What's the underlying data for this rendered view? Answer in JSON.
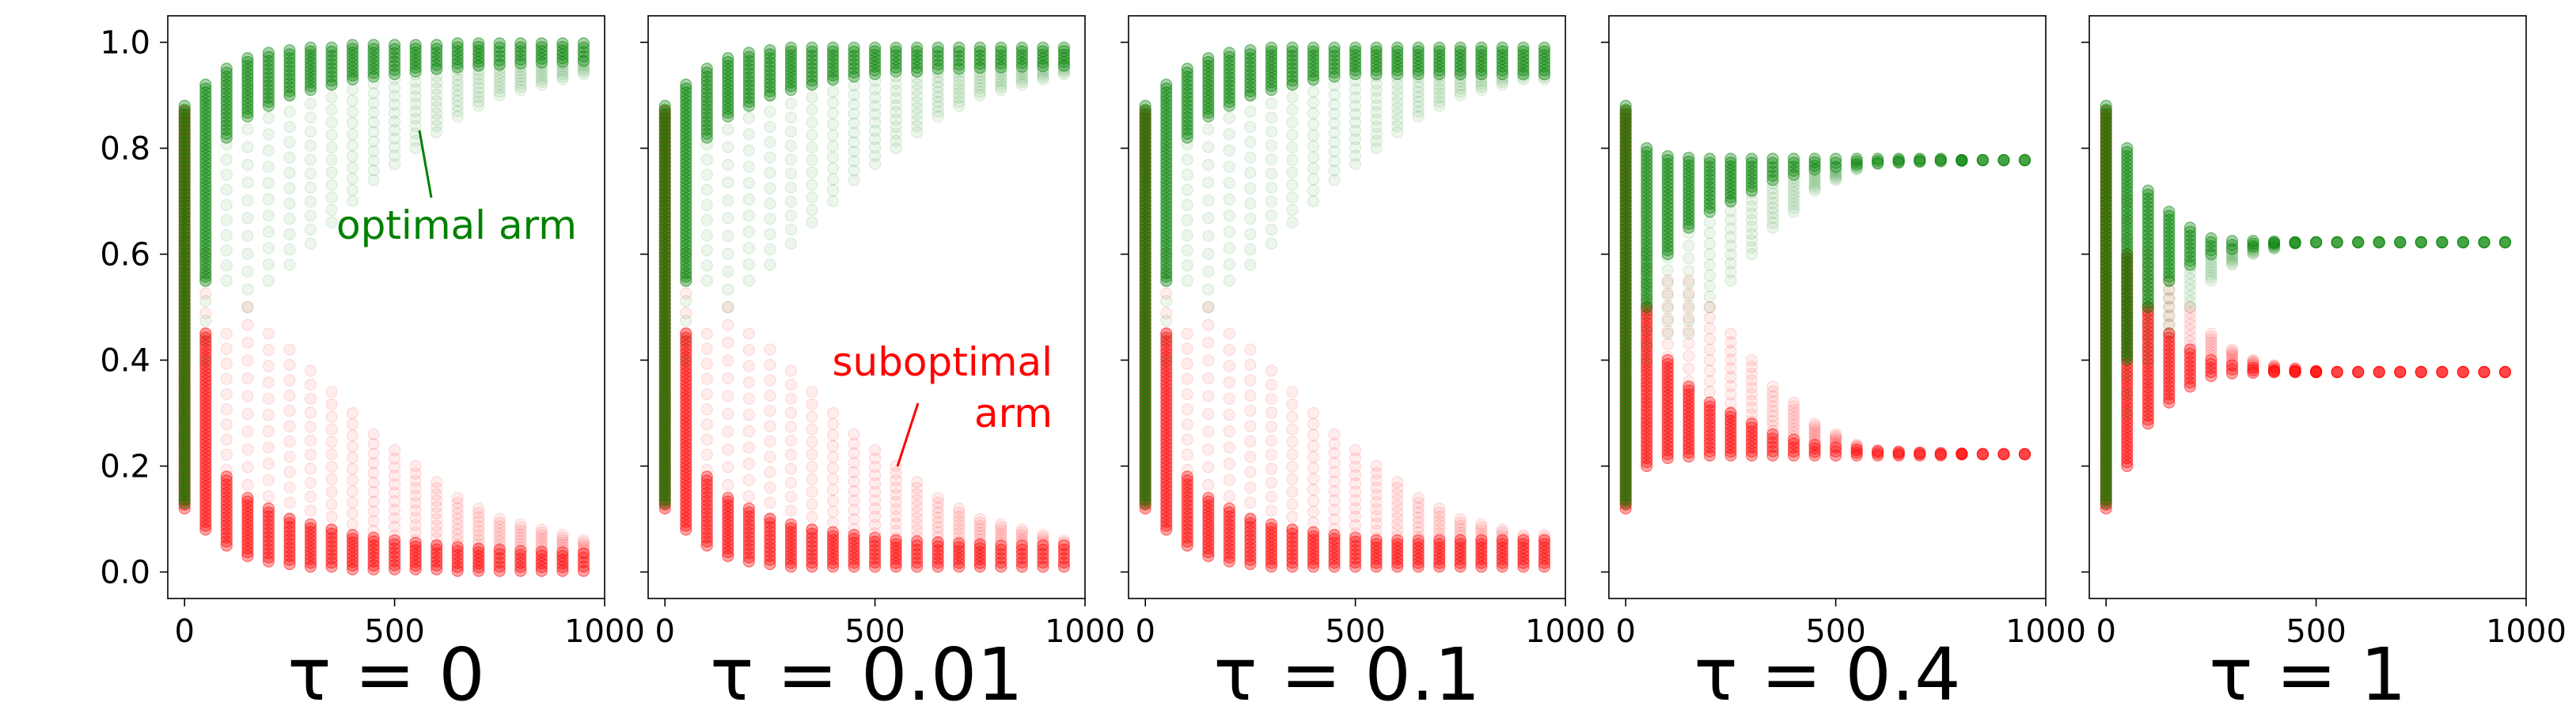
{
  "figure": {
    "y_tick_labels": [
      "0.0",
      "0.2",
      "0.4",
      "0.6",
      "0.8",
      "1.0"
    ],
    "x_tick_labels": [
      "0",
      "500",
      "1000"
    ]
  },
  "annotations": {
    "optimal": "optimal arm",
    "suboptimal_line1": "suboptimal",
    "suboptimal_line2": "arm"
  },
  "colors": {
    "optimal": "#008000",
    "suboptimal": "#ff0000",
    "axis": "#000000"
  },
  "chart_data": [
    {
      "type": "scatter",
      "title": "τ = 0",
      "xlim": [
        -40,
        1000
      ],
      "ylim": [
        -0.05,
        1.05
      ],
      "x_ticks": [
        0,
        500,
        1000
      ],
      "y_ticks": [
        0.0,
        0.2,
        0.4,
        0.6,
        0.8,
        1.0
      ],
      "grid": false,
      "series": [
        {
          "name": "optimal arm",
          "color": "#008000",
          "x": [
            0,
            50,
            100,
            150,
            200,
            250,
            300,
            350,
            400,
            450,
            500,
            550,
            600,
            650,
            700,
            750,
            800,
            850,
            900,
            950
          ],
          "y_low": [
            0.13,
            0.55,
            0.82,
            0.86,
            0.88,
            0.9,
            0.91,
            0.92,
            0.93,
            0.935,
            0.94,
            0.945,
            0.95,
            0.953,
            0.956,
            0.958,
            0.96,
            0.962,
            0.963,
            0.965
          ],
          "y_high": [
            0.88,
            0.92,
            0.95,
            0.97,
            0.98,
            0.985,
            0.99,
            0.99,
            0.995,
            0.995,
            0.995,
            0.995,
            0.995,
            0.998,
            0.998,
            0.998,
            0.998,
            0.998,
            0.998,
            0.998
          ],
          "y_faint_low": [
            0.13,
            0.4,
            0.55,
            0.5,
            0.55,
            0.58,
            0.62,
            0.66,
            0.7,
            0.74,
            0.77,
            0.8,
            0.83,
            0.86,
            0.88,
            0.9,
            0.91,
            0.92,
            0.93,
            0.94
          ]
        },
        {
          "name": "suboptimal arm",
          "color": "#ff0000",
          "x": [
            0,
            50,
            100,
            150,
            200,
            250,
            300,
            350,
            400,
            450,
            500,
            550,
            600,
            650,
            700,
            750,
            800,
            850,
            900,
            950
          ],
          "y_low": [
            0.12,
            0.08,
            0.05,
            0.03,
            0.02,
            0.015,
            0.01,
            0.01,
            0.005,
            0.005,
            0.005,
            0.005,
            0.005,
            0.002,
            0.002,
            0.002,
            0.002,
            0.002,
            0.002,
            0.002
          ],
          "y_high": [
            0.87,
            0.45,
            0.18,
            0.14,
            0.12,
            0.1,
            0.09,
            0.08,
            0.07,
            0.065,
            0.06,
            0.055,
            0.05,
            0.047,
            0.044,
            0.042,
            0.04,
            0.038,
            0.037,
            0.035
          ],
          "y_faint_high": [
            0.87,
            0.6,
            0.45,
            0.5,
            0.45,
            0.42,
            0.38,
            0.34,
            0.3,
            0.26,
            0.23,
            0.2,
            0.17,
            0.14,
            0.12,
            0.1,
            0.09,
            0.08,
            0.07,
            0.06
          ]
        }
      ]
    },
    {
      "type": "scatter",
      "title": "τ = 0.01",
      "xlim": [
        -40,
        1000
      ],
      "ylim": [
        -0.05,
        1.05
      ],
      "x_ticks": [
        0,
        500,
        1000
      ],
      "y_ticks": [
        0.0,
        0.2,
        0.4,
        0.6,
        0.8,
        1.0
      ],
      "grid": false,
      "series": [
        {
          "name": "optimal arm",
          "color": "#008000",
          "x": [
            0,
            50,
            100,
            150,
            200,
            250,
            300,
            350,
            400,
            450,
            500,
            550,
            600,
            650,
            700,
            750,
            800,
            850,
            900,
            950
          ],
          "y_low": [
            0.13,
            0.55,
            0.82,
            0.86,
            0.88,
            0.9,
            0.91,
            0.92,
            0.93,
            0.935,
            0.94,
            0.945,
            0.945,
            0.95,
            0.95,
            0.952,
            0.953,
            0.954,
            0.955,
            0.956
          ],
          "y_high": [
            0.88,
            0.92,
            0.95,
            0.97,
            0.98,
            0.985,
            0.99,
            0.99,
            0.99,
            0.99,
            0.99,
            0.99,
            0.99,
            0.99,
            0.99,
            0.99,
            0.99,
            0.99,
            0.99,
            0.99
          ],
          "y_faint_low": [
            0.13,
            0.4,
            0.55,
            0.5,
            0.55,
            0.58,
            0.62,
            0.66,
            0.7,
            0.74,
            0.77,
            0.8,
            0.83,
            0.86,
            0.88,
            0.9,
            0.91,
            0.92,
            0.93,
            0.94
          ]
        },
        {
          "name": "suboptimal arm",
          "color": "#ff0000",
          "x": [
            0,
            50,
            100,
            150,
            200,
            250,
            300,
            350,
            400,
            450,
            500,
            550,
            600,
            650,
            700,
            750,
            800,
            850,
            900,
            950
          ],
          "y_low": [
            0.12,
            0.08,
            0.05,
            0.03,
            0.02,
            0.015,
            0.01,
            0.01,
            0.01,
            0.01,
            0.01,
            0.01,
            0.01,
            0.01,
            0.01,
            0.01,
            0.01,
            0.01,
            0.01,
            0.01
          ],
          "y_high": [
            0.87,
            0.45,
            0.18,
            0.14,
            0.12,
            0.1,
            0.09,
            0.08,
            0.075,
            0.07,
            0.065,
            0.06,
            0.058,
            0.056,
            0.054,
            0.052,
            0.05,
            0.05,
            0.05,
            0.05
          ],
          "y_faint_high": [
            0.87,
            0.6,
            0.45,
            0.5,
            0.45,
            0.42,
            0.38,
            0.34,
            0.3,
            0.26,
            0.23,
            0.2,
            0.17,
            0.14,
            0.12,
            0.1,
            0.09,
            0.08,
            0.07,
            0.06
          ]
        }
      ]
    },
    {
      "type": "scatter",
      "title": "τ = 0.1",
      "xlim": [
        -40,
        1000
      ],
      "ylim": [
        -0.05,
        1.05
      ],
      "x_ticks": [
        0,
        500,
        1000
      ],
      "y_ticks": [
        0.0,
        0.2,
        0.4,
        0.6,
        0.8,
        1.0
      ],
      "grid": false,
      "series": [
        {
          "name": "optimal arm",
          "color": "#008000",
          "x": [
            0,
            50,
            100,
            150,
            200,
            250,
            300,
            350,
            400,
            450,
            500,
            550,
            600,
            650,
            700,
            750,
            800,
            850,
            900,
            950
          ],
          "y_low": [
            0.13,
            0.55,
            0.82,
            0.86,
            0.88,
            0.9,
            0.91,
            0.92,
            0.93,
            0.935,
            0.94,
            0.94,
            0.94,
            0.94,
            0.94,
            0.94,
            0.94,
            0.94,
            0.94,
            0.94
          ],
          "y_high": [
            0.88,
            0.92,
            0.95,
            0.97,
            0.98,
            0.985,
            0.99,
            0.99,
            0.99,
            0.99,
            0.99,
            0.99,
            0.99,
            0.99,
            0.99,
            0.99,
            0.99,
            0.99,
            0.99,
            0.99
          ],
          "y_faint_low": [
            0.13,
            0.4,
            0.55,
            0.5,
            0.55,
            0.58,
            0.62,
            0.66,
            0.7,
            0.74,
            0.77,
            0.8,
            0.83,
            0.86,
            0.88,
            0.9,
            0.91,
            0.92,
            0.93,
            0.93
          ]
        },
        {
          "name": "suboptimal arm",
          "color": "#ff0000",
          "x": [
            0,
            50,
            100,
            150,
            200,
            250,
            300,
            350,
            400,
            450,
            500,
            550,
            600,
            650,
            700,
            750,
            800,
            850,
            900,
            950
          ],
          "y_low": [
            0.12,
            0.08,
            0.05,
            0.03,
            0.02,
            0.015,
            0.01,
            0.01,
            0.01,
            0.01,
            0.01,
            0.01,
            0.01,
            0.01,
            0.01,
            0.01,
            0.01,
            0.01,
            0.01,
            0.01
          ],
          "y_high": [
            0.87,
            0.45,
            0.18,
            0.14,
            0.12,
            0.1,
            0.09,
            0.08,
            0.075,
            0.07,
            0.065,
            0.06,
            0.06,
            0.06,
            0.06,
            0.06,
            0.06,
            0.06,
            0.06,
            0.06
          ],
          "y_faint_high": [
            0.87,
            0.6,
            0.45,
            0.5,
            0.45,
            0.42,
            0.38,
            0.34,
            0.3,
            0.26,
            0.23,
            0.2,
            0.17,
            0.14,
            0.12,
            0.1,
            0.09,
            0.08,
            0.07,
            0.07
          ]
        }
      ]
    },
    {
      "type": "scatter",
      "title": "τ = 0.4",
      "xlim": [
        -40,
        1000
      ],
      "ylim": [
        -0.05,
        1.05
      ],
      "x_ticks": [
        0,
        500,
        1000
      ],
      "y_ticks": [
        0.0,
        0.2,
        0.4,
        0.6,
        0.8,
        1.0
      ],
      "grid": false,
      "series": [
        {
          "name": "optimal arm",
          "color": "#008000",
          "x": [
            0,
            50,
            100,
            150,
            200,
            250,
            300,
            350,
            400,
            450,
            500,
            550,
            600,
            650,
            700,
            750,
            800,
            850,
            900,
            950
          ],
          "y_low": [
            0.13,
            0.5,
            0.6,
            0.65,
            0.68,
            0.7,
            0.72,
            0.74,
            0.75,
            0.76,
            0.765,
            0.77,
            0.772,
            0.774,
            0.775,
            0.776,
            0.777,
            0.777,
            0.777,
            0.777
          ],
          "y_high": [
            0.88,
            0.8,
            0.785,
            0.782,
            0.78,
            0.78,
            0.78,
            0.78,
            0.78,
            0.78,
            0.78,
            0.78,
            0.78,
            0.78,
            0.78,
            0.78,
            0.778,
            0.778,
            0.778,
            0.778
          ],
          "y_faint_low": [
            0.13,
            0.4,
            0.45,
            0.45,
            0.5,
            0.55,
            0.6,
            0.65,
            0.68,
            0.72,
            0.74,
            0.76,
            0.77,
            0.772,
            0.774,
            0.775,
            0.776,
            0.777,
            0.777,
            0.777
          ]
        },
        {
          "name": "suboptimal arm",
          "color": "#ff0000",
          "x": [
            0,
            50,
            100,
            150,
            200,
            250,
            300,
            350,
            400,
            450,
            500,
            550,
            600,
            650,
            700,
            750,
            800,
            850,
            900,
            950
          ],
          "y_low": [
            0.12,
            0.2,
            0.215,
            0.218,
            0.22,
            0.22,
            0.22,
            0.22,
            0.22,
            0.22,
            0.22,
            0.22,
            0.22,
            0.22,
            0.22,
            0.22,
            0.222,
            0.222,
            0.222,
            0.222
          ],
          "y_high": [
            0.87,
            0.5,
            0.4,
            0.35,
            0.32,
            0.3,
            0.28,
            0.26,
            0.25,
            0.24,
            0.235,
            0.23,
            0.228,
            0.226,
            0.225,
            0.224,
            0.223,
            0.223,
            0.223,
            0.223
          ],
          "y_faint_high": [
            0.87,
            0.6,
            0.55,
            0.55,
            0.5,
            0.45,
            0.4,
            0.35,
            0.32,
            0.28,
            0.26,
            0.24,
            0.23,
            0.228,
            0.226,
            0.225,
            0.224,
            0.223,
            0.223,
            0.223
          ]
        }
      ]
    },
    {
      "type": "scatter",
      "title": "τ = 1",
      "xlim": [
        -40,
        1000
      ],
      "ylim": [
        -0.05,
        1.05
      ],
      "x_ticks": [
        0,
        500,
        1000
      ],
      "y_ticks": [
        0.0,
        0.2,
        0.4,
        0.6,
        0.8,
        1.0
      ],
      "grid": false,
      "series": [
        {
          "name": "optimal arm",
          "color": "#008000",
          "x": [
            0,
            50,
            100,
            150,
            200,
            250,
            300,
            350,
            400,
            450,
            500,
            550,
            600,
            650,
            700,
            750,
            800,
            850,
            900,
            950
          ],
          "y_low": [
            0.13,
            0.4,
            0.5,
            0.55,
            0.58,
            0.6,
            0.61,
            0.615,
            0.62,
            0.621,
            0.622,
            0.622,
            0.622,
            0.622,
            0.622,
            0.622,
            0.622,
            0.622,
            0.622,
            0.622
          ],
          "y_high": [
            0.88,
            0.8,
            0.72,
            0.68,
            0.65,
            0.63,
            0.625,
            0.625,
            0.624,
            0.623,
            0.623,
            0.623,
            0.623,
            0.623,
            0.623,
            0.623,
            0.623,
            0.623,
            0.623,
            0.623
          ],
          "y_faint_low": [
            0.13,
            0.3,
            0.4,
            0.45,
            0.5,
            0.55,
            0.58,
            0.6,
            0.61,
            0.62,
            0.622,
            0.622,
            0.622,
            0.622,
            0.622,
            0.622,
            0.622,
            0.622,
            0.622,
            0.622
          ]
        },
        {
          "name": "suboptimal arm",
          "color": "#ff0000",
          "x": [
            0,
            50,
            100,
            150,
            200,
            250,
            300,
            350,
            400,
            450,
            500,
            550,
            600,
            650,
            700,
            750,
            800,
            850,
            900,
            950
          ],
          "y_low": [
            0.12,
            0.2,
            0.28,
            0.32,
            0.35,
            0.37,
            0.375,
            0.376,
            0.377,
            0.377,
            0.377,
            0.377,
            0.377,
            0.377,
            0.377,
            0.377,
            0.377,
            0.377,
            0.377,
            0.377
          ],
          "y_high": [
            0.87,
            0.6,
            0.5,
            0.45,
            0.42,
            0.4,
            0.39,
            0.385,
            0.38,
            0.379,
            0.378,
            0.378,
            0.378,
            0.378,
            0.378,
            0.378,
            0.378,
            0.378,
            0.378,
            0.378
          ],
          "y_faint_high": [
            0.87,
            0.7,
            0.6,
            0.55,
            0.5,
            0.45,
            0.42,
            0.4,
            0.39,
            0.385,
            0.38,
            0.378,
            0.378,
            0.378,
            0.378,
            0.378,
            0.378,
            0.378,
            0.378,
            0.378
          ]
        }
      ]
    }
  ]
}
